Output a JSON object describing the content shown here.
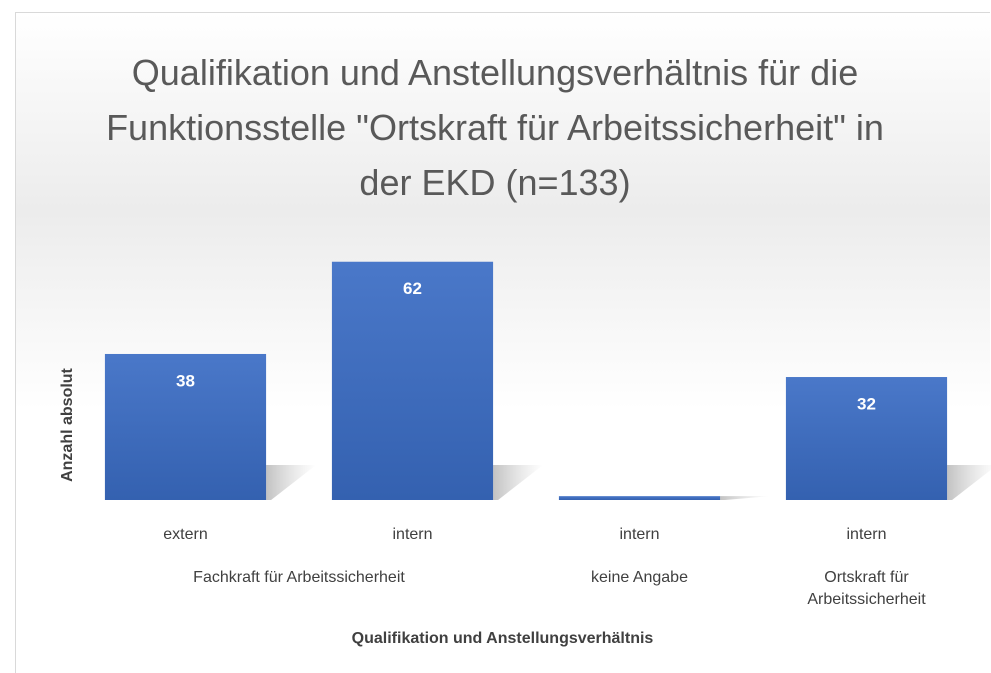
{
  "chart_data": {
    "type": "bar",
    "title": "Qualifikation und Anstellungsverhältnis für die Funktionsstelle \"Ortskraft für Arbeitssicherheit\" in der EKD (n=133)",
    "x_label": "Qualifikation und Anstellungsverhältnis",
    "y_label": "Anzahl absolut",
    "categories": [
      "extern",
      "intern",
      "intern",
      "intern"
    ],
    "groups": [
      {
        "name": "Fachkraft für Arbeitssicherheit",
        "count": 2
      },
      {
        "name": "keine Angabe",
        "count": 1
      },
      {
        "name": "Ortskraft für Arbeitssicherheit",
        "count": 1
      }
    ],
    "values": [
      38,
      62,
      1,
      32
    ],
    "color": "#4472c4",
    "ylim": [
      0,
      70
    ]
  }
}
